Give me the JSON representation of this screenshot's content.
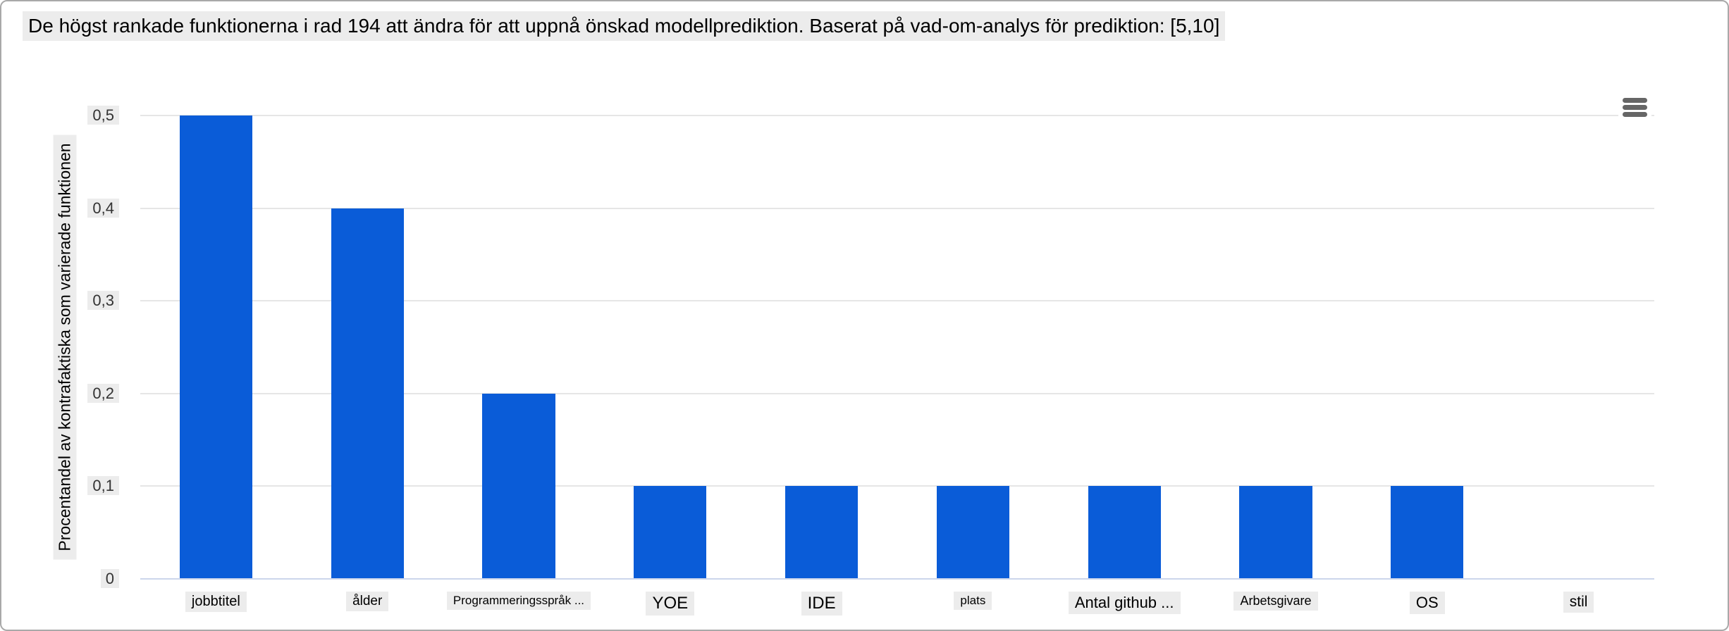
{
  "page": {
    "title": "De högst rankade funktionerna i rad 194 att ändra för att uppnå önskad modellprediktion. Baserat på vad-om-analys för prediktion: [5,10]"
  },
  "toolbar": {
    "menu_icon": "hamburger-menu-icon"
  },
  "chart_data": {
    "type": "bar",
    "title": "De högst rankade funktionerna i rad 194 att ändra för att uppnå önskad modellprediktion. Baserat på vad-om-analys för prediktion: [5,10]",
    "xlabel": "",
    "ylabel": "Procentandel av kontrafaktiska som varierade funktionen",
    "categories": [
      "jobbtitel",
      "ålder",
      "Programmeringsspråk ...",
      "YOE",
      "IDE",
      "plats",
      "Antal github ...",
      "Arbetsgivare",
      "OS",
      "stil"
    ],
    "values": [
      0.5,
      0.4,
      0.2,
      0.1,
      0.1,
      0.1,
      0.1,
      0.1,
      0.1,
      0
    ],
    "ylim": [
      0,
      0.5
    ],
    "y_ticks": [
      {
        "value": 0,
        "label": "0"
      },
      {
        "value": 0.1,
        "label": "0,1"
      },
      {
        "value": 0.2,
        "label": "0,2"
      },
      {
        "value": 0.3,
        "label": "0,3"
      },
      {
        "value": 0.4,
        "label": "0,4"
      },
      {
        "value": 0.5,
        "label": "0,5"
      }
    ],
    "grid": true,
    "legend": "none",
    "layout_hints": {
      "bar_width_fraction": 0.48,
      "x_label_font_px": [
        20,
        19,
        17,
        24,
        24,
        17,
        22,
        18,
        22,
        21
      ]
    },
    "colors": {
      "bar": "#0a5cd8",
      "gridline": "#e6e6e6",
      "axis_line": "#ccd6eb",
      "highlight_bg": "#ececec",
      "title_text": "#000000",
      "tick_text": "#333333",
      "menu_icon": "#666666",
      "page_border": "#a9a9a9",
      "background": "#ffffff"
    }
  }
}
